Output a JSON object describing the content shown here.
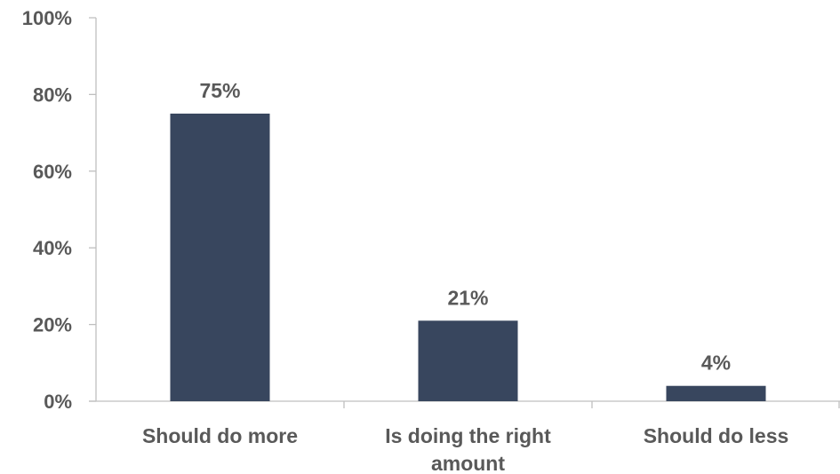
{
  "chart_data": {
    "type": "bar",
    "title": "",
    "xlabel": "",
    "ylabel": "",
    "categories": [
      "Should do more",
      "Is doing the right amount",
      "Should do less"
    ],
    "category_label_lines": [
      [
        "Should do more"
      ],
      [
        "Is doing the right",
        "amount"
      ],
      [
        "Should do less"
      ]
    ],
    "values": [
      75,
      21,
      4
    ],
    "data_labels": [
      "75%",
      "21%",
      "4%"
    ],
    "ylim": [
      0,
      100
    ],
    "yticks": [
      0,
      20,
      40,
      60,
      80,
      100
    ],
    "ytick_labels": [
      "0%",
      "20%",
      "40%",
      "60%",
      "80%",
      "100%"
    ],
    "grid": false,
    "legend": "none",
    "colors": {
      "bar": "#38465e",
      "axis": "#bfbfbf",
      "text": "#595959"
    }
  }
}
